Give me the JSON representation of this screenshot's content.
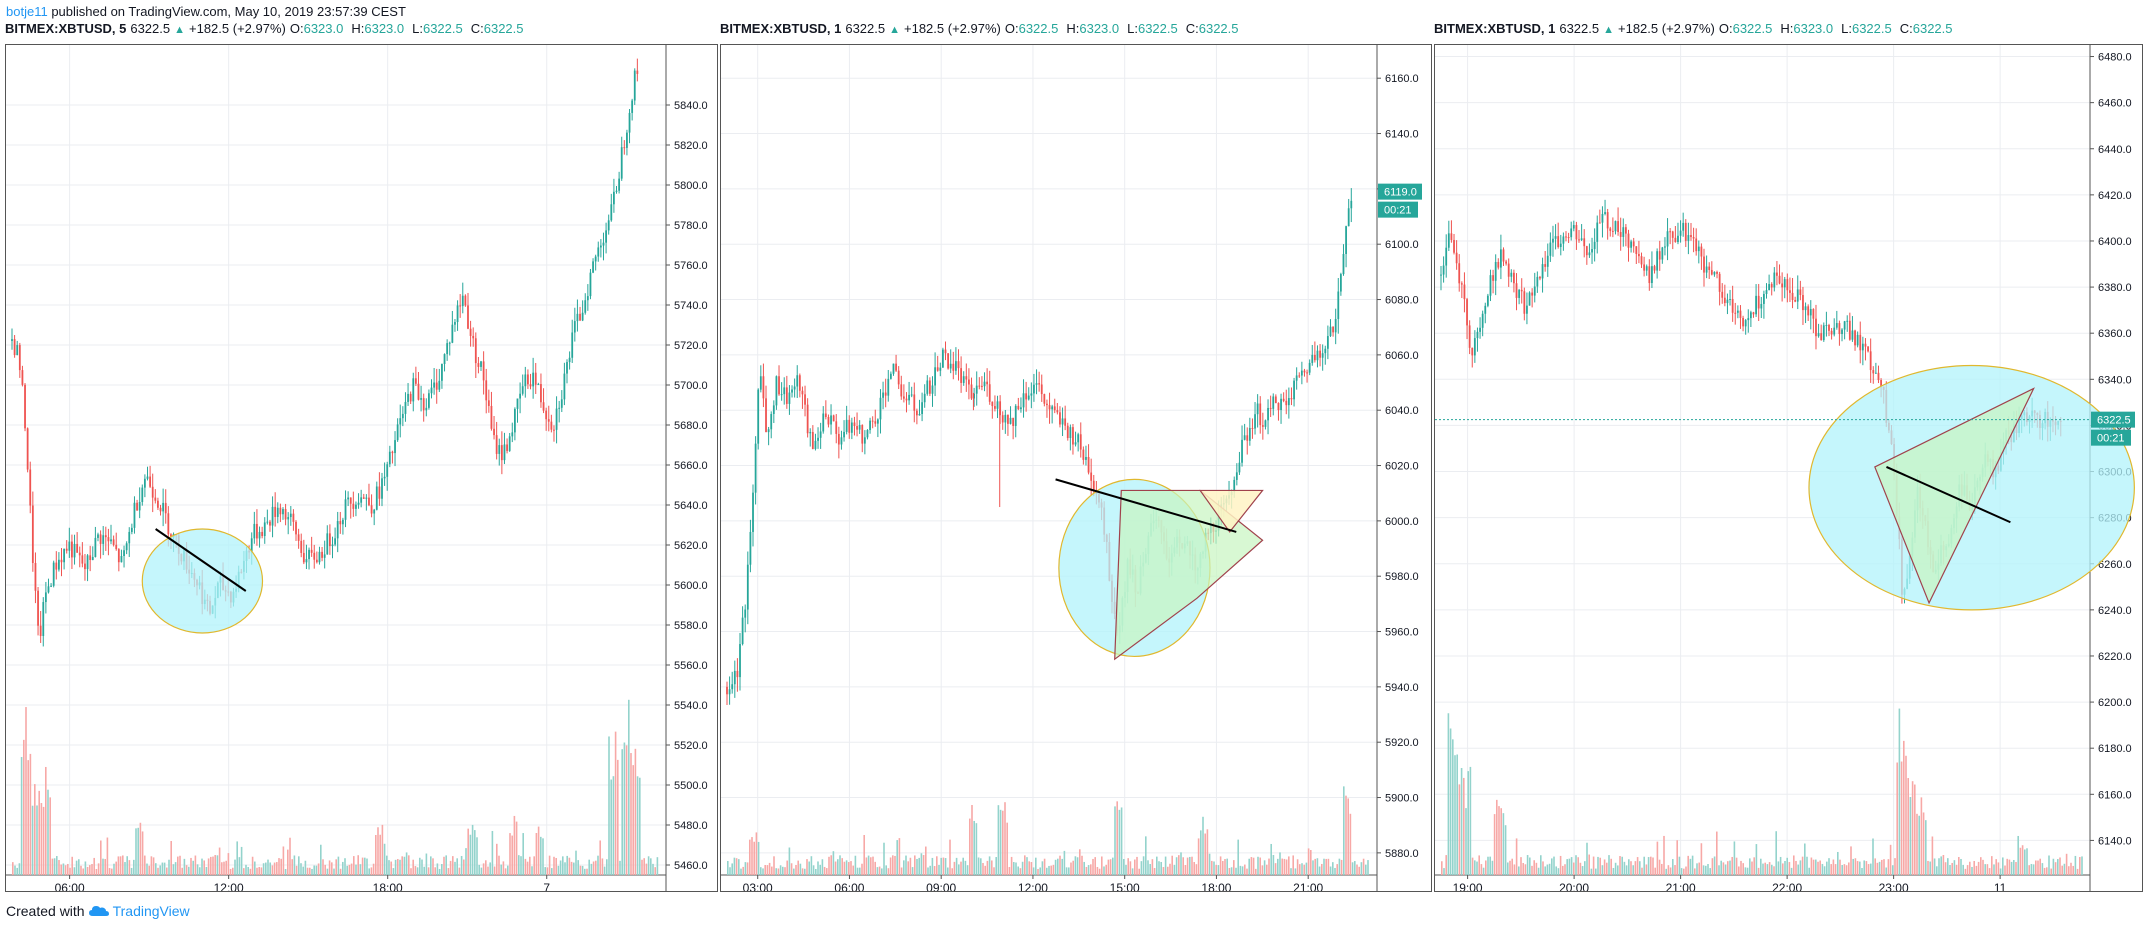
{
  "publisher": {
    "author": "botje11",
    "text": "published on TradingView.com, May 10, 2019 23:57:39 CEST"
  },
  "footer": {
    "created_with": "Created with",
    "brand": "TradingView"
  },
  "colors": {
    "up": "#26a69a",
    "down": "#ef5350",
    "circle_fill": "#b2f3fb",
    "circle_stroke": "#e0b82e",
    "triangle_green": "#c8f5c0",
    "triangle_yellow": "#fff3c4",
    "trendline": "#000000",
    "grid": "#ebedf1"
  },
  "icons": {
    "logo": "tradingview-cloud-icon",
    "up_arrow": "triangle-up-icon"
  },
  "chart_data": [
    {
      "type": "candlestick",
      "header": {
        "symbol": "BITMEX:XBTUSD, 5",
        "last": "6322.5",
        "change": "+182.5 (+2.97%)",
        "o_label": "O:",
        "o": "6323.0",
        "h_label": "H:",
        "h": "6323.0",
        "l_label": "L:",
        "l": "6322.5",
        "c_label": "C:",
        "c": "6322.5"
      },
      "ylim": [
        5455,
        5870
      ],
      "y_ticks": [
        "5460.0",
        "5480.0",
        "5500.0",
        "5520.0",
        "5540.0",
        "5560.0",
        "5580.0",
        "5600.0",
        "5620.0",
        "5640.0",
        "5660.0",
        "5680.0",
        "5700.0",
        "5720.0",
        "5740.0",
        "5760.0",
        "5780.0",
        "5800.0",
        "5820.0",
        "5840.0"
      ],
      "x_ticks": [
        "06:00",
        "12:00",
        "18:00",
        "7"
      ],
      "price_path": [
        [
          0,
          5722
        ],
        [
          2,
          5715
        ],
        [
          4,
          5680
        ],
        [
          6,
          5620
        ],
        [
          8,
          5570
        ],
        [
          10,
          5595
        ],
        [
          13,
          5610
        ],
        [
          17,
          5620
        ],
        [
          22,
          5608
        ],
        [
          26,
          5625
        ],
        [
          30,
          5620
        ],
        [
          33,
          5610
        ],
        [
          37,
          5640
        ],
        [
          40,
          5655
        ],
        [
          44,
          5642
        ],
        [
          48,
          5625
        ],
        [
          52,
          5612
        ],
        [
          56,
          5600
        ],
        [
          59,
          5585
        ],
        [
          62,
          5600
        ],
        [
          66,
          5595
        ],
        [
          69,
          5610
        ],
        [
          72,
          5625
        ],
        [
          76,
          5630
        ],
        [
          80,
          5640
        ],
        [
          84,
          5630
        ],
        [
          88,
          5612
        ],
        [
          92,
          5615
        ],
        [
          96,
          5625
        ],
        [
          100,
          5640
        ],
        [
          104,
          5645
        ],
        [
          108,
          5640
        ],
        [
          112,
          5655
        ],
        [
          116,
          5680
        ],
        [
          120,
          5700
        ],
        [
          124,
          5690
        ],
        [
          128,
          5705
        ],
        [
          132,
          5730
        ],
        [
          135,
          5745
        ],
        [
          138,
          5720
        ],
        [
          141,
          5705
        ],
        [
          144,
          5672
        ],
        [
          147,
          5665
        ],
        [
          150,
          5680
        ],
        [
          153,
          5700
        ],
        [
          156,
          5705
        ],
        [
          159,
          5690
        ],
        [
          162,
          5680
        ],
        [
          165,
          5700
        ],
        [
          168,
          5725
        ],
        [
          171,
          5740
        ],
        [
          174,
          5760
        ],
        [
          177,
          5775
        ],
        [
          180,
          5790
        ],
        [
          183,
          5820
        ],
        [
          186,
          5850
        ],
        [
          188,
          5862
        ]
      ],
      "volume_spikes": [
        [
          4,
          0.85
        ],
        [
          7,
          0.5
        ],
        [
          10,
          0.55
        ],
        [
          38,
          0.3
        ],
        [
          110,
          0.3
        ],
        [
          138,
          0.28
        ],
        [
          150,
          0.3
        ],
        [
          158,
          0.3
        ],
        [
          180,
          0.75
        ],
        [
          184,
          0.95
        ],
        [
          187,
          0.7
        ]
      ],
      "circle": {
        "cx": 57,
        "cy": 5602,
        "rx": 18,
        "ry": 26
      },
      "trendline": [
        [
          43,
          5628
        ],
        [
          70,
          5597
        ]
      ]
    },
    {
      "type": "candlestick",
      "header": {
        "symbol": "BITMEX:XBTUSD, 1",
        "last": "6322.5",
        "change": "+182.5 (+2.97%)",
        "o_label": "O:",
        "o": "6322.5",
        "h_label": "H:",
        "h": "6323.0",
        "l_label": "L:",
        "l": "6322.5",
        "c_label": "C:",
        "c": "6322.5"
      },
      "ylim": [
        5872,
        6172
      ],
      "y_ticks": [
        "5880.0",
        "5900.0",
        "5920.0",
        "5940.0",
        "5960.0",
        "5980.0",
        "6000.0",
        "6020.0",
        "6040.0",
        "6060.0",
        "6080.0",
        "6100.0",
        "6120.0",
        "6140.0",
        "6160.0"
      ],
      "x_ticks": [
        "03:00",
        "06:00",
        "09:00",
        "12:00",
        "15:00",
        "18:00",
        "21:00"
      ],
      "last_price_label": "6119.0",
      "countdown_label": "00:21",
      "last_price": 6119,
      "price_path": [
        [
          0,
          5940
        ],
        [
          3,
          5945
        ],
        [
          6,
          5975
        ],
        [
          8,
          6010
        ],
        [
          10,
          6060
        ],
        [
          12,
          6030
        ],
        [
          15,
          6050
        ],
        [
          18,
          6045
        ],
        [
          22,
          6050
        ],
        [
          26,
          6025
        ],
        [
          30,
          6040
        ],
        [
          34,
          6030
        ],
        [
          38,
          6035
        ],
        [
          42,
          6030
        ],
        [
          46,
          6040
        ],
        [
          50,
          6055
        ],
        [
          54,
          6045
        ],
        [
          58,
          6040
        ],
        [
          62,
          6050
        ],
        [
          66,
          6060
        ],
        [
          70,
          6055
        ],
        [
          74,
          6045
        ],
        [
          78,
          6050
        ],
        [
          82,
          6042
        ],
        [
          86,
          6035
        ],
        [
          90,
          6045
        ],
        [
          94,
          6050
        ],
        [
          98,
          6040
        ],
        [
          102,
          6035
        ],
        [
          106,
          6030
        ],
        [
          110,
          6020
        ],
        [
          114,
          6005
        ],
        [
          117,
          5975
        ],
        [
          119,
          5960
        ],
        [
          122,
          5985
        ],
        [
          125,
          5975
        ],
        [
          128,
          5995
        ],
        [
          131,
          6000
        ],
        [
          134,
          5985
        ],
        [
          137,
          5995
        ],
        [
          140,
          5990
        ],
        [
          143,
          5980
        ],
        [
          146,
          5995
        ],
        [
          149,
          6000
        ],
        [
          152,
          6005
        ],
        [
          155,
          6020
        ],
        [
          158,
          6030
        ],
        [
          161,
          6040
        ],
        [
          164,
          6035
        ],
        [
          167,
          6045
        ],
        [
          170,
          6040
        ],
        [
          173,
          6050
        ],
        [
          176,
          6055
        ],
        [
          179,
          6060
        ],
        [
          182,
          6065
        ],
        [
          185,
          6070
        ],
        [
          187,
          6090
        ],
        [
          189,
          6115
        ],
        [
          190,
          6119
        ]
      ],
      "spikes": [
        [
          83,
          6005
        ],
        [
          75,
          6040
        ]
      ],
      "volume_spikes": [
        [
          8,
          0.25
        ],
        [
          75,
          0.35
        ],
        [
          84,
          0.4
        ],
        [
          119,
          0.4
        ],
        [
          145,
          0.3
        ],
        [
          189,
          0.45
        ]
      ],
      "circle": {
        "cx": 124,
        "cy": 5983,
        "rx": 23,
        "ry": 32
      },
      "triangle_green": [
        [
          118,
          5950
        ],
        [
          120,
          6011
        ],
        [
          144,
          6011
        ],
        [
          163,
          5993
        ],
        [
          143,
          5972
        ]
      ],
      "triangle_yellow": [
        [
          144,
          6011
        ],
        [
          163,
          6011
        ],
        [
          153,
          5996
        ]
      ],
      "trendline": [
        [
          100,
          6015
        ],
        [
          155,
          5996
        ]
      ]
    },
    {
      "type": "candlestick",
      "header": {
        "symbol": "BITMEX:XBTUSD, 1",
        "last": "6322.5",
        "change": "+182.5 (+2.97%)",
        "o_label": "O:",
        "o": "6322.5",
        "h_label": "H:",
        "h": "6323.0",
        "l_label": "L:",
        "l": "6322.5",
        "c_label": "C:",
        "c": "6322.5"
      },
      "ylim": [
        6125,
        6485
      ],
      "y_ticks": [
        "6140.0",
        "6160.0",
        "6180.0",
        "6200.0",
        "6220.0",
        "6240.0",
        "6260.0",
        "6280.0",
        "6300.0",
        "6320.0",
        "6340.0",
        "6360.0",
        "6380.0",
        "6400.0",
        "6420.0",
        "6440.0",
        "6460.0",
        "6480.0"
      ],
      "x_ticks": [
        "19:00",
        "20:00",
        "21:00",
        "22:00",
        "23:00",
        "11"
      ],
      "last_price_label": "6322.5",
      "countdown_label": "00:21",
      "last_price": 6322.5,
      "price_path": [
        [
          0,
          6385
        ],
        [
          2,
          6405
        ],
        [
          4,
          6390
        ],
        [
          6,
          6375
        ],
        [
          8,
          6350
        ],
        [
          10,
          6360
        ],
        [
          13,
          6385
        ],
        [
          16,
          6395
        ],
        [
          19,
          6380
        ],
        [
          22,
          6370
        ],
        [
          26,
          6390
        ],
        [
          30,
          6400
        ],
        [
          34,
          6405
        ],
        [
          38,
          6395
        ],
        [
          42,
          6410
        ],
        [
          46,
          6405
        ],
        [
          50,
          6395
        ],
        [
          54,
          6385
        ],
        [
          58,
          6400
        ],
        [
          62,
          6405
        ],
        [
          66,
          6395
        ],
        [
          70,
          6385
        ],
        [
          74,
          6375
        ],
        [
          78,
          6365
        ],
        [
          82,
          6375
        ],
        [
          86,
          6385
        ],
        [
          90,
          6380
        ],
        [
          94,
          6370
        ],
        [
          98,
          6360
        ],
        [
          102,
          6365
        ],
        [
          106,
          6360
        ],
        [
          110,
          6350
        ],
        [
          114,
          6335
        ],
        [
          117,
          6300
        ],
        [
          119,
          6250
        ],
        [
          121,
          6260
        ],
        [
          123,
          6290
        ],
        [
          125,
          6280
        ],
        [
          127,
          6255
        ],
        [
          129,
          6265
        ],
        [
          131,
          6270
        ],
        [
          134,
          6295
        ],
        [
          137,
          6285
        ],
        [
          140,
          6305
        ],
        [
          143,
          6300
        ],
        [
          146,
          6315
        ],
        [
          149,
          6320
        ],
        [
          152,
          6325
        ],
        [
          155,
          6322
        ],
        [
          160,
          6322.5
        ]
      ],
      "volume_spikes": [
        [
          3,
          0.95
        ],
        [
          6,
          0.55
        ],
        [
          15,
          0.4
        ],
        [
          119,
          0.85
        ],
        [
          121,
          0.6
        ],
        [
          124,
          0.45
        ],
        [
          150,
          0.2
        ]
      ],
      "circle": {
        "cx": 137,
        "cy": 6293,
        "rx": 42,
        "ry": 53
      },
      "triangle_green": [
        [
          112,
          6302
        ],
        [
          126,
          6243
        ],
        [
          153,
          6336
        ]
      ],
      "trendline": [
        [
          115,
          6302
        ],
        [
          147,
          6278
        ]
      ]
    }
  ]
}
